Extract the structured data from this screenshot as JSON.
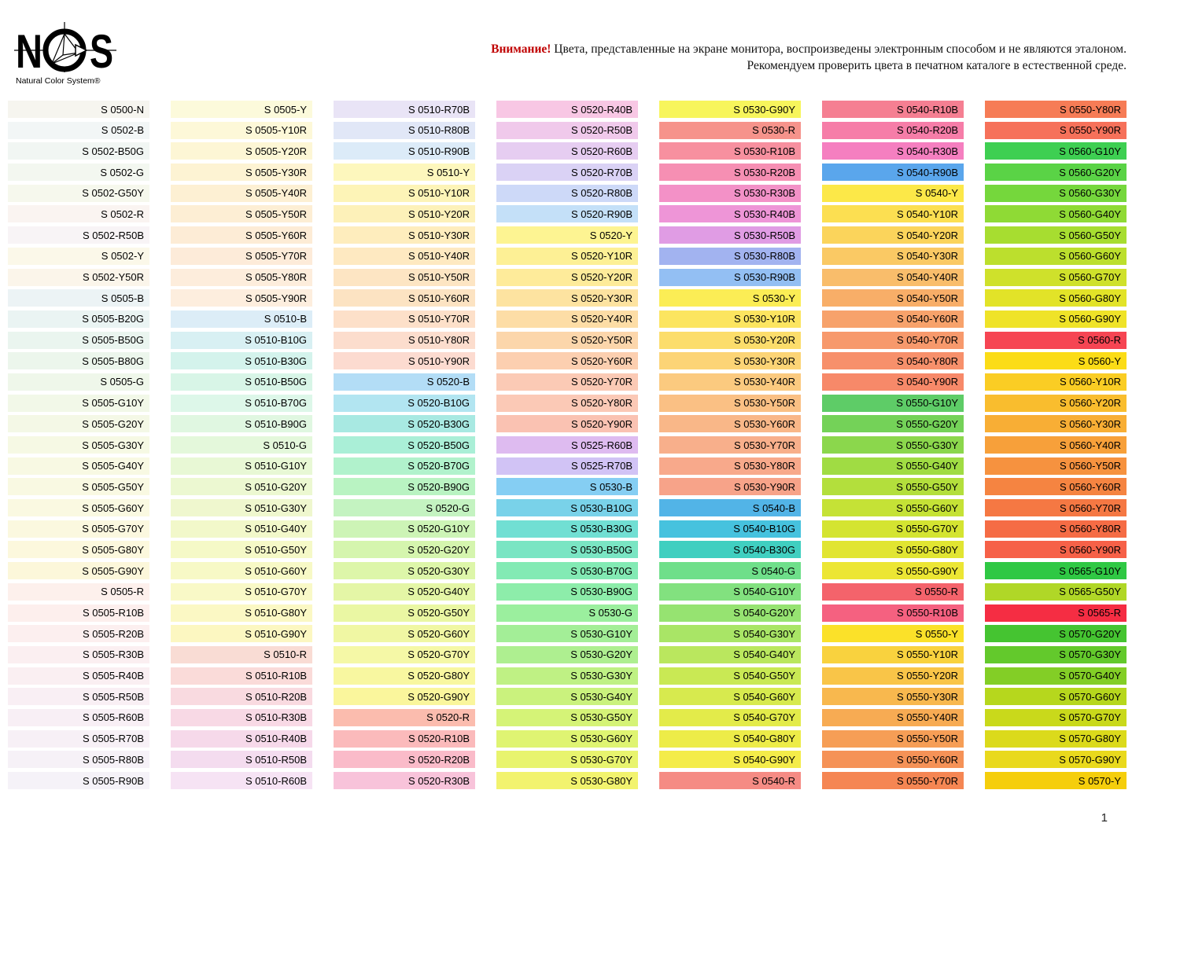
{
  "logo": {
    "letter_n": "N",
    "letter_s": "S",
    "subtext": "Natural Color System®"
  },
  "notice": {
    "attention": "Внимание!",
    "attention_color": "#c00000",
    "line1": " Цвета, представленные на экране монитора, воспроизведены электронным способом и не являются эталоном.",
    "line2": "Рекомендуем проверить цвета в печатном каталоге в естественной среде."
  },
  "page_number": "1",
  "swatch_columns": [
    [
      {
        "label": "S 0500-N",
        "color": "#f6f5ef"
      },
      {
        "label": "S 0502-B",
        "color": "#f2f6f6"
      },
      {
        "label": "S 0502-B50G",
        "color": "#f1f6f3"
      },
      {
        "label": "S 0502-G",
        "color": "#f3f7f0"
      },
      {
        "label": "S 0502-G50Y",
        "color": "#f6f8ed"
      },
      {
        "label": "S 0502-R",
        "color": "#faf4f1"
      },
      {
        "label": "S 0502-R50B",
        "color": "#f8f4f6"
      },
      {
        "label": "S 0502-Y",
        "color": "#fbf8e9"
      },
      {
        "label": "S 0502-Y50R",
        "color": "#fbf5ea"
      },
      {
        "label": "S 0505-B",
        "color": "#ecf3f5"
      },
      {
        "label": "S 0505-B20G",
        "color": "#eaf4f3"
      },
      {
        "label": "S 0505-B50G",
        "color": "#eaf5ef"
      },
      {
        "label": "S 0505-B80G",
        "color": "#ecf6ec"
      },
      {
        "label": "S 0505-G",
        "color": "#eff7ea"
      },
      {
        "label": "S 0505-G10Y",
        "color": "#f2f8e8"
      },
      {
        "label": "S 0505-G20Y",
        "color": "#f4f8e6"
      },
      {
        "label": "S 0505-G30Y",
        "color": "#f6f9e4"
      },
      {
        "label": "S 0505-G40Y",
        "color": "#f8f9e3"
      },
      {
        "label": "S 0505-G50Y",
        "color": "#f9f9e2"
      },
      {
        "label": "S 0505-G60Y",
        "color": "#faf9e1"
      },
      {
        "label": "S 0505-G70Y",
        "color": "#fbf8df"
      },
      {
        "label": "S 0505-G80Y",
        "color": "#fcf8dd"
      },
      {
        "label": "S 0505-G90Y",
        "color": "#fcf7da"
      },
      {
        "label": "S 0505-R",
        "color": "#fdf0ec"
      },
      {
        "label": "S 0505-R10B",
        "color": "#fdefed"
      },
      {
        "label": "S 0505-R20B",
        "color": "#fcefef"
      },
      {
        "label": "S 0505-R30B",
        "color": "#fbeff1"
      },
      {
        "label": "S 0505-R40B",
        "color": "#faeff2"
      },
      {
        "label": "S 0505-R50B",
        "color": "#f9eff4"
      },
      {
        "label": "S 0505-R60B",
        "color": "#f8eff5"
      },
      {
        "label": "S 0505-R70B",
        "color": "#f7f0f6"
      },
      {
        "label": "S 0505-R80B",
        "color": "#f6f1f7"
      },
      {
        "label": "S 0505-R90B",
        "color": "#f5f2f8"
      }
    ],
    [
      {
        "label": "S 0505-Y",
        "color": "#fcfadb"
      },
      {
        "label": "S 0505-Y10R",
        "color": "#fdf8d8"
      },
      {
        "label": "S 0505-Y20R",
        "color": "#fdf6d5"
      },
      {
        "label": "S 0505-Y30R",
        "color": "#fdf3d3"
      },
      {
        "label": "S 0505-Y40R",
        "color": "#fdf0d3"
      },
      {
        "label": "S 0505-Y50R",
        "color": "#fdeed4"
      },
      {
        "label": "S 0505-Y60R",
        "color": "#fdecd6"
      },
      {
        "label": "S 0505-Y70R",
        "color": "#fdebd9"
      },
      {
        "label": "S 0505-Y80R",
        "color": "#fdeddc"
      },
      {
        "label": "S 0505-Y90R",
        "color": "#fdeede"
      },
      {
        "label": "S 0510-B",
        "color": "#dcedf7"
      },
      {
        "label": "S 0510-B10G",
        "color": "#d8f0f3"
      },
      {
        "label": "S 0510-B30G",
        "color": "#d4f3ec"
      },
      {
        "label": "S 0510-B50G",
        "color": "#d8f5e7"
      },
      {
        "label": "S 0510-B70G",
        "color": "#ddf7e9"
      },
      {
        "label": "S 0510-B90G",
        "color": "#e0f7e1"
      },
      {
        "label": "S 0510-G",
        "color": "#e4f8db"
      },
      {
        "label": "S 0510-G10Y",
        "color": "#e8f8d5"
      },
      {
        "label": "S 0510-G20Y",
        "color": "#ecf8d1"
      },
      {
        "label": "S 0510-G30Y",
        "color": "#eff7ce"
      },
      {
        "label": "S 0510-G40Y",
        "color": "#f2f8ca"
      },
      {
        "label": "S 0510-G50Y",
        "color": "#f5f9c7"
      },
      {
        "label": "S 0510-G60Y",
        "color": "#f7f9c6"
      },
      {
        "label": "S 0510-G70Y",
        "color": "#f9f9c7"
      },
      {
        "label": "S 0510-G80Y",
        "color": "#fbf8c4"
      },
      {
        "label": "S 0510-G90Y",
        "color": "#fcf7c1"
      },
      {
        "label": "S 0510-R",
        "color": "#f9dcd4"
      },
      {
        "label": "S 0510-R10B",
        "color": "#fadbd9"
      },
      {
        "label": "S 0510-R20B",
        "color": "#f9dae0"
      },
      {
        "label": "S 0510-R30B",
        "color": "#f8d9e5"
      },
      {
        "label": "S 0510-R40B",
        "color": "#f6d9ea"
      },
      {
        "label": "S 0510-R50B",
        "color": "#f4dcef"
      },
      {
        "label": "S 0510-R60B",
        "color": "#f6e3f4"
      }
    ],
    [
      {
        "label": "S 0510-R70B",
        "color": "#e9e4f6"
      },
      {
        "label": "S 0510-R80B",
        "color": "#e1e7f7"
      },
      {
        "label": "S 0510-R90B",
        "color": "#dcebf8"
      },
      {
        "label": "S 0510-Y",
        "color": "#fdf7bd"
      },
      {
        "label": "S 0510-Y10R",
        "color": "#fdf4b7"
      },
      {
        "label": "S 0510-Y20R",
        "color": "#fdf1b9"
      },
      {
        "label": "S 0510-Y30R",
        "color": "#feedbd"
      },
      {
        "label": "S 0510-Y40R",
        "color": "#fee9c1"
      },
      {
        "label": "S 0510-Y50R",
        "color": "#fde5c3"
      },
      {
        "label": "S 0510-Y60R",
        "color": "#fce3c2"
      },
      {
        "label": "S 0510-Y70R",
        "color": "#fde0c9"
      },
      {
        "label": "S 0510-Y80R",
        "color": "#fcddcd"
      },
      {
        "label": "S 0510-Y90R",
        "color": "#fcdbd0"
      },
      {
        "label": "S 0520-B",
        "color": "#b3ddf6"
      },
      {
        "label": "S 0520-B10G",
        "color": "#b2e5f1"
      },
      {
        "label": "S 0520-B30G",
        "color": "#a8e9e2"
      },
      {
        "label": "S 0520-B50G",
        "color": "#aaefd7"
      },
      {
        "label": "S 0520-B70G",
        "color": "#b1f2cc"
      },
      {
        "label": "S 0520-B90G",
        "color": "#b9f3c2"
      },
      {
        "label": "S 0520-G",
        "color": "#c4f3c1"
      },
      {
        "label": "S 0520-G10Y",
        "color": "#cdf4b6"
      },
      {
        "label": "S 0520-G20Y",
        "color": "#d5f5ae"
      },
      {
        "label": "S 0520-G30Y",
        "color": "#ddf6a9"
      },
      {
        "label": "S 0520-G40Y",
        "color": "#e4f6a6"
      },
      {
        "label": "S 0520-G50Y",
        "color": "#eaf7a3"
      },
      {
        "label": "S 0520-G60Y",
        "color": "#f0f7a3"
      },
      {
        "label": "S 0520-G70Y",
        "color": "#f5f8a6"
      },
      {
        "label": "S 0520-G80Y",
        "color": "#f8f7a0"
      },
      {
        "label": "S 0520-G90Y",
        "color": "#faf69c"
      },
      {
        "label": "S 0520-R",
        "color": "#fbbcae"
      },
      {
        "label": "S 0520-R10B",
        "color": "#fbbabb"
      },
      {
        "label": "S 0520-R20B",
        "color": "#fabbc9"
      },
      {
        "label": "S 0520-R30B",
        "color": "#f8c3da"
      }
    ],
    [
      {
        "label": "S 0520-R40B",
        "color": "#f8c7e4"
      },
      {
        "label": "S 0520-R50B",
        "color": "#f0c9eb"
      },
      {
        "label": "S 0520-R60B",
        "color": "#e6cdf1"
      },
      {
        "label": "S 0520-R70B",
        "color": "#dad2f5"
      },
      {
        "label": "S 0520-R80B",
        "color": "#cdd9f8"
      },
      {
        "label": "S 0520-R90B",
        "color": "#c4e0f8"
      },
      {
        "label": "S 0520-Y",
        "color": "#fdf492"
      },
      {
        "label": "S 0520-Y10R",
        "color": "#fdf095"
      },
      {
        "label": "S 0520-Y20R",
        "color": "#feeb9a"
      },
      {
        "label": "S 0520-Y30R",
        "color": "#fde3a0"
      },
      {
        "label": "S 0520-Y40R",
        "color": "#fddda6"
      },
      {
        "label": "S 0520-Y50R",
        "color": "#fcd6ab"
      },
      {
        "label": "S 0520-Y60R",
        "color": "#fccfb0"
      },
      {
        "label": "S 0520-Y70R",
        "color": "#fbcab5"
      },
      {
        "label": "S 0520-Y80R",
        "color": "#fbc9b6"
      },
      {
        "label": "S 0520-Y90R",
        "color": "#fac2b2"
      },
      {
        "label": "S 0525-R60B",
        "color": "#debbf0"
      },
      {
        "label": "S 0525-R70B",
        "color": "#d1c3f5"
      },
      {
        "label": "S 0530-B",
        "color": "#85cef3"
      },
      {
        "label": "S 0530-B10G",
        "color": "#79d2e9"
      },
      {
        "label": "S 0530-B30G",
        "color": "#71dfd3"
      },
      {
        "label": "S 0530-B50G",
        "color": "#7ae5c3"
      },
      {
        "label": "S 0530-B70G",
        "color": "#83eab4"
      },
      {
        "label": "S 0530-B90G",
        "color": "#8dedaa"
      },
      {
        "label": "S 0530-G",
        "color": "#9bef9e"
      },
      {
        "label": "S 0530-G10Y",
        "color": "#a3ee97"
      },
      {
        "label": "S 0530-G20Y",
        "color": "#aeef90"
      },
      {
        "label": "S 0530-G30Y",
        "color": "#bff184"
      },
      {
        "label": "S 0530-G40Y",
        "color": "#caf27d"
      },
      {
        "label": "S 0530-G50Y",
        "color": "#d5f377"
      },
      {
        "label": "S 0530-G60Y",
        "color": "#dff472"
      },
      {
        "label": "S 0530-G70Y",
        "color": "#e8f46e"
      },
      {
        "label": "S 0530-G80Y",
        "color": "#f2f36e"
      }
    ],
    [
      {
        "label": "S 0530-G90Y",
        "color": "#f7f55c"
      },
      {
        "label": "S 0530-R",
        "color": "#f6938b"
      },
      {
        "label": "S 0530-R10B",
        "color": "#f7909f"
      },
      {
        "label": "S 0530-R20B",
        "color": "#f68fb3"
      },
      {
        "label": "S 0530-R30B",
        "color": "#f391c7"
      },
      {
        "label": "S 0530-R40B",
        "color": "#ee95d7"
      },
      {
        "label": "S 0530-R50B",
        "color": "#e09ce4"
      },
      {
        "label": "S 0530-R80B",
        "color": "#a2b3f0"
      },
      {
        "label": "S 0530-R90B",
        "color": "#93bff3"
      },
      {
        "label": "S 0530-Y",
        "color": "#fbed55"
      },
      {
        "label": "S 0530-Y10R",
        "color": "#fce560"
      },
      {
        "label": "S 0530-Y20R",
        "color": "#fcdd6b"
      },
      {
        "label": "S 0530-Y30R",
        "color": "#fcd476"
      },
      {
        "label": "S 0530-Y40R",
        "color": "#fbca7f"
      },
      {
        "label": "S 0530-Y50R",
        "color": "#fac084"
      },
      {
        "label": "S 0530-Y60R",
        "color": "#f9b788"
      },
      {
        "label": "S 0530-Y70R",
        "color": "#f8af8b"
      },
      {
        "label": "S 0530-Y80R",
        "color": "#f8a98b"
      },
      {
        "label": "S 0530-Y90R",
        "color": "#f7a389"
      },
      {
        "label": "S 0540-B",
        "color": "#52b4e7"
      },
      {
        "label": "S 0540-B10G",
        "color": "#46c2de"
      },
      {
        "label": "S 0540-B30G",
        "color": "#40cfc0"
      },
      {
        "label": "S 0540-G",
        "color": "#6fdf8a"
      },
      {
        "label": "S 0540-G10Y",
        "color": "#82e17f"
      },
      {
        "label": "S 0540-G20Y",
        "color": "#96e371"
      },
      {
        "label": "S 0540-G30Y",
        "color": "#a9e566"
      },
      {
        "label": "S 0540-G40Y",
        "color": "#bae75e"
      },
      {
        "label": "S 0540-G50Y",
        "color": "#c9e954"
      },
      {
        "label": "S 0540-G60Y",
        "color": "#d7ea4e"
      },
      {
        "label": "S 0540-G70Y",
        "color": "#e3eb4a"
      },
      {
        "label": "S 0540-G80Y",
        "color": "#edec48"
      },
      {
        "label": "S 0540-G90Y",
        "color": "#f4ec49"
      },
      {
        "label": "S 0540-R",
        "color": "#f58b84"
      }
    ],
    [
      {
        "label": "S 0540-R10B",
        "color": "#f57f92"
      },
      {
        "label": "S 0540-R20B",
        "color": "#f67da8"
      },
      {
        "label": "S 0540-R30B",
        "color": "#f57fc0"
      },
      {
        "label": "S 0540-R90B",
        "color": "#5aa6ec"
      },
      {
        "label": "S 0540-Y",
        "color": "#fce848"
      },
      {
        "label": "S 0540-Y10R",
        "color": "#fcdf51"
      },
      {
        "label": "S 0540-Y20R",
        "color": "#fbd45b"
      },
      {
        "label": "S 0540-Y30R",
        "color": "#fac964"
      },
      {
        "label": "S 0540-Y40R",
        "color": "#f9bd6b"
      },
      {
        "label": "S 0540-Y50R",
        "color": "#f8ae68"
      },
      {
        "label": "S 0540-Y60R",
        "color": "#f7a26b"
      },
      {
        "label": "S 0540-Y70R",
        "color": "#f7996c"
      },
      {
        "label": "S 0540-Y80R",
        "color": "#f7906b"
      },
      {
        "label": "S 0540-Y90R",
        "color": "#f78969"
      },
      {
        "label": "S 0550-G10Y",
        "color": "#5ecc67"
      },
      {
        "label": "S 0550-G20Y",
        "color": "#74d258"
      },
      {
        "label": "S 0550-G30Y",
        "color": "#8bd74c"
      },
      {
        "label": "S 0550-G40Y",
        "color": "#a0dc43"
      },
      {
        "label": "S 0550-G50Y",
        "color": "#b3df3c"
      },
      {
        "label": "S 0550-G60Y",
        "color": "#c5e236"
      },
      {
        "label": "S 0550-G70Y",
        "color": "#d4e431"
      },
      {
        "label": "S 0550-G80Y",
        "color": "#e1e532"
      },
      {
        "label": "S 0550-G90Y",
        "color": "#ece634"
      },
      {
        "label": "S 0550-R",
        "color": "#f4636b"
      },
      {
        "label": "S 0550-R10B",
        "color": "#f56180"
      },
      {
        "label": "S 0550-Y",
        "color": "#fbe129"
      },
      {
        "label": "S 0550-Y10R",
        "color": "#f9d23e"
      },
      {
        "label": "S 0550-Y20R",
        "color": "#f9c548"
      },
      {
        "label": "S 0550-Y30R",
        "color": "#f8b84e"
      },
      {
        "label": "S 0550-Y40R",
        "color": "#f7ab53"
      },
      {
        "label": "S 0550-Y50R",
        "color": "#f69e56"
      },
      {
        "label": "S 0550-Y60R",
        "color": "#f59257"
      },
      {
        "label": "S 0550-Y70R",
        "color": "#f58653"
      }
    ],
    [
      {
        "label": "S 0550-Y80R",
        "color": "#f67c56"
      },
      {
        "label": "S 0550-Y90R",
        "color": "#f6715a"
      },
      {
        "label": "S 0560-G10Y",
        "color": "#3ecf52"
      },
      {
        "label": "S 0560-G20Y",
        "color": "#5ad346"
      },
      {
        "label": "S 0560-G30Y",
        "color": "#75d73c"
      },
      {
        "label": "S 0560-G40Y",
        "color": "#8fda35"
      },
      {
        "label": "S 0560-G50Y",
        "color": "#a7dd30"
      },
      {
        "label": "S 0560-G60Y",
        "color": "#bcdf2d"
      },
      {
        "label": "S 0560-G70Y",
        "color": "#cfe12b"
      },
      {
        "label": "S 0560-G80Y",
        "color": "#e2e328"
      },
      {
        "label": "S 0560-G90Y",
        "color": "#efe328"
      },
      {
        "label": "S 0560-R",
        "color": "#f64553"
      },
      {
        "label": "S 0560-Y",
        "color": "#fbdc17"
      },
      {
        "label": "S 0560-Y10R",
        "color": "#facd24"
      },
      {
        "label": "S 0560-Y20R",
        "color": "#f9bd2e"
      },
      {
        "label": "S 0560-Y30R",
        "color": "#f8ae35"
      },
      {
        "label": "S 0560-Y40R",
        "color": "#f7a03a"
      },
      {
        "label": "S 0560-Y50R",
        "color": "#f6923f"
      },
      {
        "label": "S 0560-Y60R",
        "color": "#f58441"
      },
      {
        "label": "S 0560-Y70R",
        "color": "#f57843"
      },
      {
        "label": "S 0560-Y80R",
        "color": "#f56c45"
      },
      {
        "label": "S 0560-Y90R",
        "color": "#f66148"
      },
      {
        "label": "S 0565-G10Y",
        "color": "#2fc844"
      },
      {
        "label": "S 0565-G50Y",
        "color": "#b0d727"
      },
      {
        "label": "S 0565-R",
        "color": "#f52d43"
      },
      {
        "label": "S 0570-G20Y",
        "color": "#45c431"
      },
      {
        "label": "S 0570-G30Y",
        "color": "#63c92c"
      },
      {
        "label": "S 0570-G40Y",
        "color": "#83ce26"
      },
      {
        "label": "S 0570-G60Y",
        "color": "#b6d71d"
      },
      {
        "label": "S 0570-G70Y",
        "color": "#c9d91b"
      },
      {
        "label": "S 0570-G80Y",
        "color": "#dbda1b"
      },
      {
        "label": "S 0570-G90Y",
        "color": "#e9d91d"
      },
      {
        "label": "S 0570-Y",
        "color": "#f5ce0c"
      }
    ]
  ]
}
